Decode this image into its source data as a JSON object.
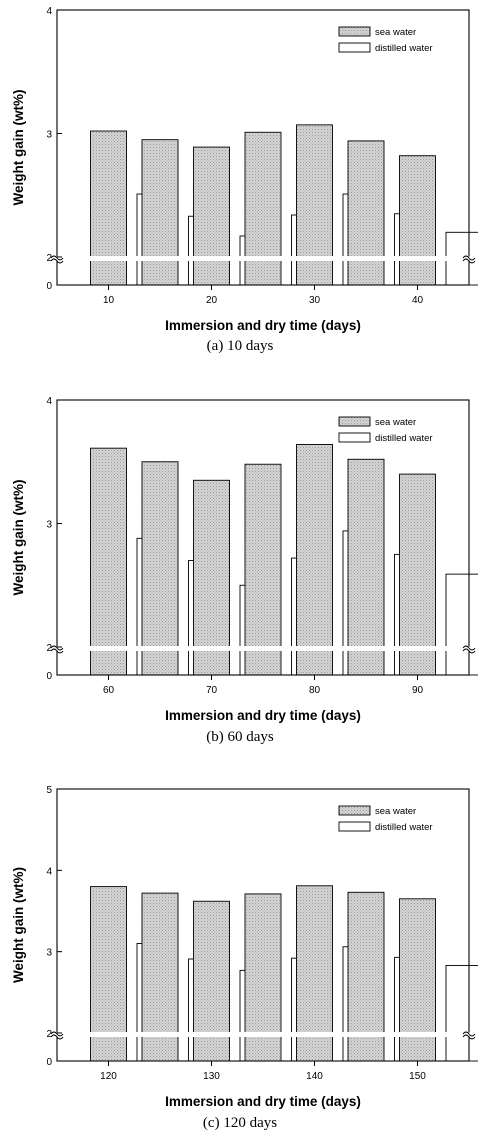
{
  "colors": {
    "sea": "#c8c8c8",
    "distilled": "#ffffff",
    "axis": "#000000"
  },
  "chart_data": [
    {
      "type": "bar",
      "caption": "(a) 10 days",
      "xlabel": "Immersion and dry time (days)",
      "ylabel": "Weight gain (wt%)",
      "xlim": [
        5,
        45
      ],
      "xticks": [
        10,
        20,
        30,
        40
      ],
      "ylim": [
        2,
        4
      ],
      "yticks": [
        0,
        2,
        3,
        4
      ],
      "axis_break": true,
      "categories": [
        10,
        15,
        20,
        25,
        30,
        35,
        40
      ],
      "series": [
        {
          "name": "sea water",
          "values": [
            3.02,
            2.95,
            2.89,
            3.01,
            3.07,
            2.94,
            2.82
          ]
        },
        {
          "name": "distilled water",
          "values": [
            2.51,
            2.33,
            2.17,
            2.34,
            2.51,
            2.35,
            2.2
          ]
        }
      ],
      "legend": "top-right"
    },
    {
      "type": "bar",
      "caption": "(b) 60 days",
      "xlabel": "Immersion and dry time (days)",
      "ylabel": "Weight gain (wt%)",
      "xlim": [
        55,
        95
      ],
      "xticks": [
        60,
        70,
        80,
        90
      ],
      "ylim": [
        2,
        4
      ],
      "yticks": [
        0,
        2,
        3,
        4
      ],
      "axis_break": true,
      "categories": [
        60,
        65,
        70,
        75,
        80,
        85,
        90
      ],
      "series": [
        {
          "name": "sea water",
          "values": [
            3.61,
            3.5,
            3.35,
            3.48,
            3.64,
            3.52,
            3.4
          ]
        },
        {
          "name": "distilled water",
          "values": [
            2.88,
            2.7,
            2.5,
            2.72,
            2.94,
            2.75,
            2.59
          ]
        }
      ],
      "legend": "top-right"
    },
    {
      "type": "bar",
      "caption": "(c) 120 days",
      "xlabel": "Immersion and dry time (days)",
      "ylabel": "Weight gain (wt%)",
      "xlim": [
        115,
        155
      ],
      "xticks": [
        120,
        130,
        140,
        150
      ],
      "ylim": [
        2,
        5
      ],
      "yticks": [
        0,
        2,
        3,
        4,
        5
      ],
      "axis_break": true,
      "categories": [
        120,
        125,
        130,
        135,
        140,
        145,
        150
      ],
      "series": [
        {
          "name": "sea water",
          "values": [
            3.8,
            3.72,
            3.62,
            3.71,
            3.81,
            3.73,
            3.65
          ]
        },
        {
          "name": "distilled water",
          "values": [
            3.1,
            2.91,
            2.77,
            2.92,
            3.06,
            2.93,
            2.83
          ]
        }
      ],
      "legend": "top-right"
    }
  ]
}
